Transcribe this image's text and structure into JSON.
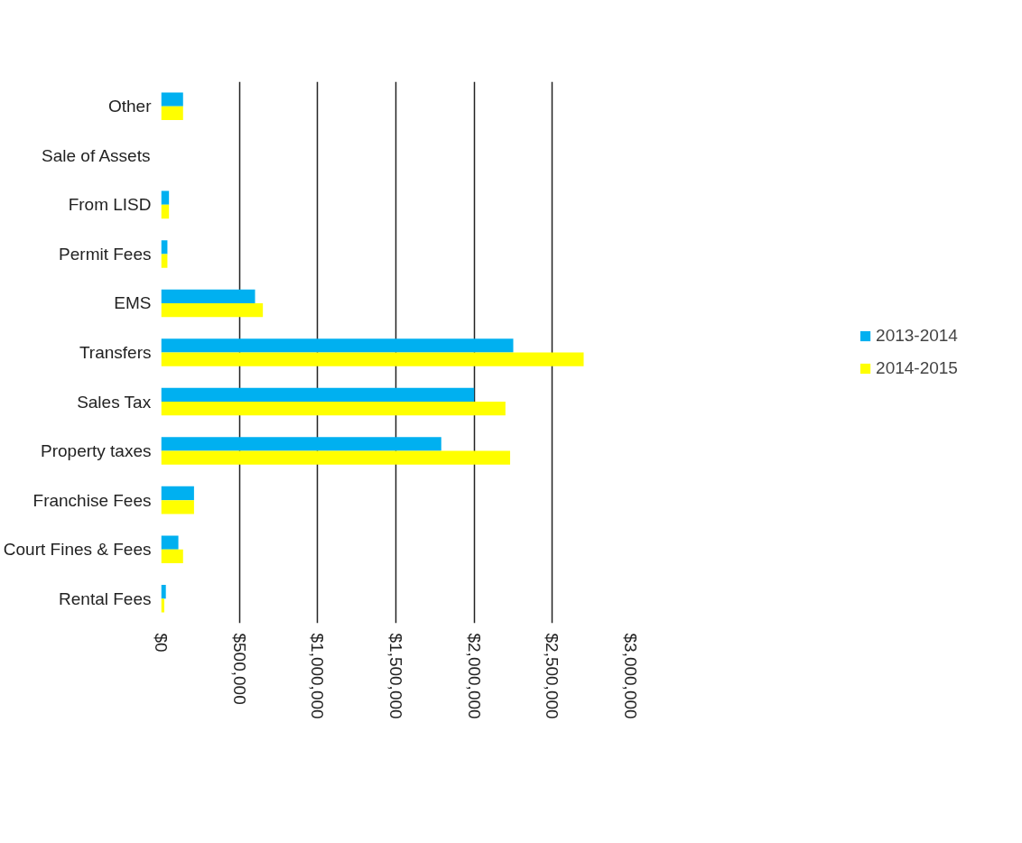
{
  "chart_data": {
    "type": "bar",
    "orientation": "horizontal",
    "categories": [
      "Other",
      "Sale of Assets",
      "From LISD",
      "Permit Fees",
      "EMS",
      "Transfers",
      "Sales Tax",
      "Property taxes",
      "Franchise Fees",
      "Court Fines & Fees",
      "Rental Fees"
    ],
    "series": [
      {
        "name": "2013-2014",
        "color": "#00b0f0",
        "values": [
          140000,
          0,
          50000,
          40000,
          600000,
          2250000,
          2000000,
          1790000,
          210000,
          110000,
          30000
        ]
      },
      {
        "name": "2014-2015",
        "color": "#ffff00",
        "values": [
          140000,
          0,
          50000,
          40000,
          650000,
          2700000,
          2200000,
          2230000,
          210000,
          140000,
          20000
        ]
      }
    ],
    "xlim": [
      0,
      3000000
    ],
    "xticks": [
      {
        "value": 0,
        "label": "$0"
      },
      {
        "value": 500000,
        "label": "$500,000"
      },
      {
        "value": 1000000,
        "label": "$1,000,000"
      },
      {
        "value": 1500000,
        "label": "$1,500,000"
      },
      {
        "value": 2000000,
        "label": "$2,000,000"
      },
      {
        "value": 2500000,
        "label": "$2,500,000"
      },
      {
        "value": 3000000,
        "label": "$3,000,000"
      }
    ],
    "grid": "x",
    "legend": "right"
  }
}
